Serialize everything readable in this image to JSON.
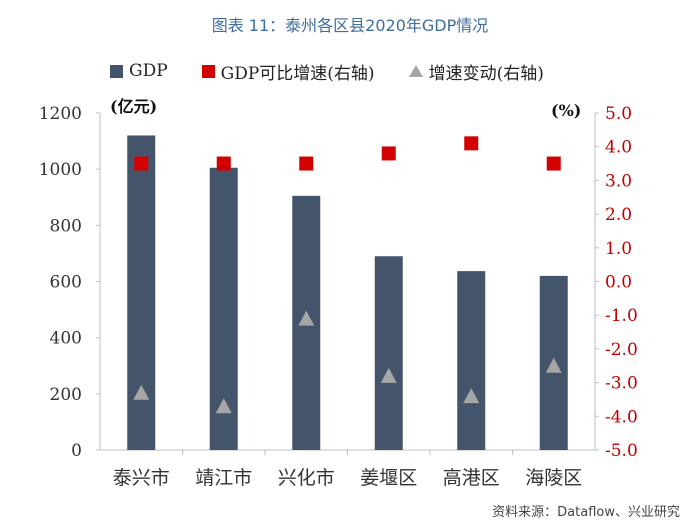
{
  "title": "图表 11：泰州各区县2020年GDP情况",
  "source": "资料来源：Dataflow、兴业研究",
  "colors": {
    "bar": "#44546a",
    "growth": "#d20000",
    "change": "#a6a6a6",
    "title": "#3f6d9e",
    "right_axis": "#c00000"
  },
  "chart_data": {
    "type": "bar",
    "categories": [
      "泰兴市",
      "靖江市",
      "兴化市",
      "姜堰区",
      "高港区",
      "海陵区"
    ],
    "series": [
      {
        "name": "GDP",
        "type": "bar",
        "axis": "left",
        "values": [
          1120,
          1005,
          905,
          690,
          637,
          620
        ]
      },
      {
        "name": "GDP可比增速(右轴)",
        "type": "scatter",
        "marker": "square",
        "axis": "right",
        "values": [
          3.5,
          3.5,
          3.5,
          3.8,
          4.1,
          3.5
        ]
      },
      {
        "name": "增速变动(右轴)",
        "type": "scatter",
        "marker": "triangle",
        "axis": "right",
        "values": [
          -3.3,
          -3.7,
          -1.1,
          -2.8,
          -3.4,
          -2.5
        ]
      }
    ],
    "left_axis": {
      "unit": "(亿元)",
      "ylim": [
        0,
        1200
      ],
      "ticks": [
        "0",
        "200",
        "400",
        "600",
        "800",
        "1000",
        "1200"
      ]
    },
    "right_axis": {
      "unit": "(%)",
      "ylim": [
        -5.0,
        5.0
      ],
      "ticks": [
        "-5.0",
        "-4.0",
        "-3.0",
        "-2.0",
        "-1.0",
        "0.0",
        "1.0",
        "2.0",
        "3.0",
        "4.0",
        "5.0"
      ]
    },
    "legend_position": "top",
    "grid": false
  }
}
